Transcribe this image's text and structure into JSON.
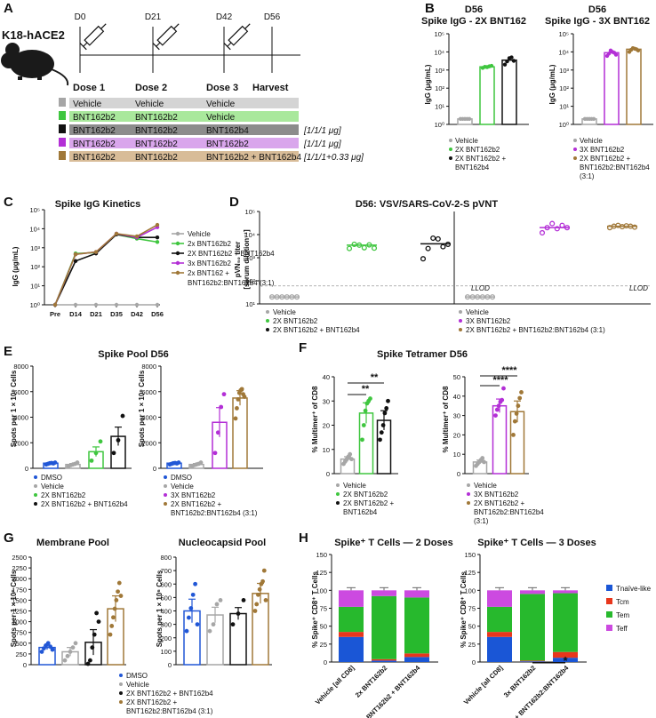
{
  "colors": {
    "vehicle": "#a6a6a6",
    "bnt2x": "#3fc63f",
    "bnt2x_b4": "#111111",
    "bnt3x": "#b32fd6",
    "bnt3x_b4": "#a07838",
    "dmso": "#2157d6",
    "tnaive": "#1a56d6",
    "tcm": "#e8361c",
    "tem": "#27b92d",
    "teff": "#cc4ae0",
    "harvest": "#e8202a",
    "dose_note": "#1f7a46"
  },
  "panel_a": {
    "letter": "A",
    "mouse": "K18-hACE2",
    "days": [
      "D0",
      "D21",
      "D42",
      "D56"
    ],
    "doses": [
      "Dose 1",
      "Dose 2",
      "Dose 3",
      "Harvest"
    ],
    "rows": [
      {
        "cells": [
          "Vehicle",
          "Vehicle",
          "Vehicle"
        ],
        "note": "",
        "color": "#a6a6a6",
        "bg": "#d4d4d4",
        "text": "#ffffff"
      },
      {
        "cells": [
          "BNT162b2",
          "BNT162b2",
          "Vehicle"
        ],
        "note": "",
        "color": "#3fc63f",
        "bg": "#a9e89c",
        "text": "#111111"
      },
      {
        "cells": [
          "BNT162b2",
          "BNT162b2",
          "BNT162b4"
        ],
        "note": "[1/1/1 μg]",
        "color": "#111111",
        "bg": "#8c8c8c",
        "text": "#111111"
      },
      {
        "cells": [
          "BNT162b2",
          "BNT162b2",
          "BNT162b2"
        ],
        "note": "[1/1/1 μg]",
        "color": "#b32fd6",
        "bg": "#d9a6ec",
        "text": "#111111"
      },
      {
        "cells": [
          "BNT162b2",
          "BNT162b2",
          "BNT162b2 + BNT162b4"
        ],
        "note": "[1/1/1+0.33 μg]",
        "color": "#a07838",
        "bg": "#d8bc98",
        "text": "#111111"
      }
    ]
  },
  "panel_b": {
    "letter": "B",
    "left": {
      "title_line1": "D56",
      "title_line2": "Spike IgG - 2X BNT162",
      "ylabel": "IgG (μg/mL)",
      "yticks": [
        "10⁰",
        "10¹",
        "10²",
        "10³",
        "10⁴",
        "10⁵"
      ],
      "legend": [
        "Vehicle",
        "2X BNT162b2",
        "2X BNT162b2 +",
        "BNT162b4"
      ],
      "bars": [
        {
          "group": "Vehicle",
          "value": 2,
          "points": [
            2,
            2,
            2,
            2,
            2
          ]
        },
        {
          "group": "2X BNT162b2",
          "value": 1500,
          "points": [
            1300,
            1500,
            1450,
            1600,
            1700
          ]
        },
        {
          "group": "2X BNT162b2 + BNT162b4",
          "value": 3500,
          "points": [
            2000,
            3000,
            4500,
            5000,
            3200
          ]
        }
      ]
    },
    "right": {
      "title_line1": "D56",
      "title_line2": "Spike IgG - 3X BNT162",
      "ylabel": "IgG (μg/mL)",
      "yticks": [
        "10⁰",
        "10¹",
        "10²",
        "10³",
        "10⁴",
        "10⁵"
      ],
      "legend": [
        "Vehicle",
        "3X BNT162b2",
        "2X BNT162b2 +",
        "BNT162b2:BNT162b4",
        "(3:1)"
      ],
      "bars": [
        {
          "group": "Vehicle",
          "value": 2,
          "points": [
            2,
            2,
            2,
            2,
            2
          ]
        },
        {
          "group": "3X BNT162b2",
          "value": 9000,
          "points": [
            6000,
            8000,
            12000,
            10000,
            9000,
            7000
          ]
        },
        {
          "group": "2X BNT162b2 + BNT162b2:BNT162b4 (3:1)",
          "value": 14000,
          "points": [
            10000,
            13000,
            16000,
            15000,
            14000,
            12000
          ]
        }
      ]
    }
  },
  "panel_c": {
    "letter": "C",
    "title": "Spike IgG Kinetics",
    "ylabel": "IgG (μg/mL)",
    "yticks": [
      "10⁰",
      "10¹",
      "10²",
      "10³",
      "10⁴",
      "10⁵"
    ],
    "x": [
      "Pre",
      "D14",
      "D21",
      "D35",
      "D42",
      "D56"
    ],
    "legend": [
      "Vehicle",
      "2x BNT162b2",
      "2X BNT162b2 + BNT162b4",
      "3x BNT162b2",
      "2x BNT162 +",
      "BNT162b2:BNT162b4 (3:1)"
    ],
    "series": [
      {
        "name": "Vehicle",
        "values": [
          1,
          1,
          1,
          1,
          1,
          1
        ]
      },
      {
        "name": "2x BNT162b2",
        "values": [
          1,
          500,
          550,
          5000,
          3000,
          2000
        ]
      },
      {
        "name": "2X BNT162b2 + BNT162b4",
        "values": [
          1,
          200,
          500,
          5000,
          3500,
          3500
        ]
      },
      {
        "name": "3x BNT162b2",
        "values": [
          1,
          450,
          600,
          5500,
          3500,
          12000
        ]
      },
      {
        "name": "2x BNT162 + BNT162b2:BNT162b4 (3:1)",
        "values": [
          1,
          450,
          600,
          5500,
          4000,
          16000
        ]
      }
    ]
  },
  "panel_d": {
    "letter": "D",
    "title": "D56: VSV/SARS-CoV-2-S pVNT",
    "ylabel_line1": "pVN₅₀ titer",
    "ylabel_line2": "[serum dilution⁻¹]",
    "yticks": [
      "10¹",
      "10²",
      "10³",
      "10⁴",
      "10⁵"
    ],
    "llod": "LLOD",
    "left_legend": [
      "Vehicle",
      "2X BNT162b2",
      "2X BNT162b2 + BNT162b4"
    ],
    "right_legend": [
      "Vehicle",
      "3X BNT162b2",
      "2X BNT162b2 + BNT162b2:BNT162b4 (3:1)"
    ],
    "left": [
      {
        "group": "Vehicle",
        "mean": 20,
        "points": [
          20,
          20,
          20,
          20,
          20,
          20
        ]
      },
      {
        "group": "2X BNT162b2",
        "mean": 3500,
        "points": [
          2500,
          3800,
          3500,
          2700,
          3600,
          2600
        ]
      },
      {
        "group": "2X BNT162b2 + BNT162b4",
        "mean": 4000,
        "points": [
          900,
          2500,
          7000,
          6500,
          3000,
          3800
        ]
      }
    ],
    "right": [
      {
        "group": "Vehicle",
        "mean": 20,
        "points": [
          20,
          20,
          20,
          20,
          20,
          20
        ]
      },
      {
        "group": "3X BNT162b2",
        "mean": 20000,
        "points": [
          12000,
          20000,
          30000,
          18000,
          25000,
          20000
        ]
      },
      {
        "group": "2X BNT162b2 + BNT162b2:BNT162b4 (3:1)",
        "mean": 23000,
        "points": [
          20000,
          23000,
          25000,
          22000,
          24000,
          23000,
          21000
        ]
      }
    ]
  },
  "panel_e": {
    "letter": "E",
    "title": "Spike Pool D56",
    "ylabel": "Spots per 1 × 10⁶ Cells",
    "yticks": [
      "0",
      "2000",
      "4000",
      "6000",
      "8000"
    ],
    "left_legend": [
      "DMSO",
      "Vehicle",
      "2X BNT162b2",
      "2X BNT162b2 + BNT162b4"
    ],
    "right_legend": [
      "DMSO",
      "Vehicle",
      "3X BNT162b2",
      "2X BNT162b2 +",
      "BNT162b2:BNT162b4 (3:1)"
    ],
    "left": [
      {
        "group": "DMSO",
        "mean": 400,
        "points": [
          300,
          350,
          400,
          420,
          380,
          450
        ]
      },
      {
        "group": "Vehicle",
        "mean": 300,
        "points": [
          150,
          250,
          300,
          350,
          450
        ]
      },
      {
        "group": "2X BNT162b2",
        "mean": 1300,
        "points": [
          600,
          1200,
          2100
        ]
      },
      {
        "group": "2X BNT162b2 + BNT162b4",
        "mean": 2500,
        "points": [
          1200,
          2200,
          4100
        ]
      }
    ],
    "right": [
      {
        "group": "DMSO",
        "mean": 400,
        "points": [
          300,
          350,
          400,
          420,
          380,
          450
        ]
      },
      {
        "group": "Vehicle",
        "mean": 300,
        "points": [
          150,
          250,
          300,
          350,
          450
        ]
      },
      {
        "group": "3X BNT162b2",
        "mean": 3600,
        "points": [
          1200,
          2800,
          4800,
          5800
        ]
      },
      {
        "group": "2X BNT162b2 + BNT162b2:BNT162b4 (3:1)",
        "mean": 5500,
        "points": [
          3900,
          4700,
          5400,
          5900,
          6100,
          6200,
          5800,
          5600
        ]
      }
    ]
  },
  "panel_f": {
    "letter": "F",
    "title": "Spike Tetramer D56",
    "ylabel": "% Multimer⁺ of CD8",
    "yticks": [
      "0",
      "10",
      "20",
      "30",
      "40"
    ],
    "left_legend": [
      "Vehicle",
      "2X BNT162b2",
      "2X BNT162b2 +",
      "BNT162b4"
    ],
    "right_legend": [
      "Vehicle",
      "3X BNT162b2",
      "2X BNT162b2 +",
      "BNT162b2:BNT162b4",
      "(3:1)"
    ],
    "left_sig": [
      "**",
      "**"
    ],
    "right_sig": [
      "****",
      "****"
    ],
    "left": [
      {
        "group": "Vehicle",
        "mean": 6,
        "points": [
          4,
          5,
          6,
          7,
          8,
          6
        ]
      },
      {
        "group": "2X BNT162b2",
        "mean": 25,
        "points": [
          14,
          20,
          26,
          29,
          30,
          31
        ]
      },
      {
        "group": "2X BNT162b2 + BNT162b4",
        "mean": 22,
        "points": [
          14,
          17,
          20,
          25,
          27,
          30
        ]
      }
    ],
    "right": [
      {
        "group": "Vehicle",
        "mean": 6,
        "points": [
          4,
          5,
          6,
          7,
          8,
          6
        ]
      },
      {
        "group": "3X BNT162b2",
        "mean": 35,
        "points": [
          30,
          33,
          35,
          37,
          38,
          44
        ]
      },
      {
        "group": "2X BNT162b2 + BNT162b2:BNT162b4 (3:1)",
        "mean": 32,
        "points": [
          20,
          27,
          31,
          35,
          39,
          42
        ]
      }
    ]
  },
  "panel_g": {
    "letter": "G",
    "ylabel": "Spots per 1 × 10⁶ Cells",
    "legend": [
      "DMSO",
      "Vehicle",
      "2X BNT162b2 + BNT162b4",
      "2X BNT162b2 +",
      "BNT162b2:BNT162b4 (3:1)"
    ],
    "membrane": {
      "title": "Membrane Pool",
      "yticks": [
        "0",
        "250",
        "500",
        "750",
        "1000",
        "1250",
        "1500",
        "1750",
        "2000",
        "2250",
        "2500"
      ],
      "bars": [
        {
          "group": "DMSO",
          "mean": 400,
          "points": [
            300,
            380,
            450,
            500,
            420,
            350
          ]
        },
        {
          "group": "Vehicle",
          "mean": 300,
          "points": [
            100,
            200,
            300,
            400,
            500
          ]
        },
        {
          "group": "2X BNT162b2 + BNT162b4",
          "mean": 520,
          "points": [
            20,
            100,
            400,
            700,
            1200,
            1000
          ]
        },
        {
          "group": "2X BNT162b2 + BNT162b2:BNT162b4 (3:1)",
          "mean": 1300,
          "points": [
            700,
            900,
            1100,
            1300,
            1500,
            1700,
            1900,
            1600
          ]
        }
      ]
    },
    "nucleocapsid": {
      "title": "Nucleocapsid Pool",
      "yticks": [
        "0",
        "100",
        "200",
        "300",
        "400",
        "500",
        "600",
        "700",
        "800"
      ],
      "bars": [
        {
          "group": "DMSO",
          "mean": 400,
          "points": [
            250,
            350,
            420,
            520,
            600,
            300
          ]
        },
        {
          "group": "Vehicle",
          "mean": 370,
          "points": [
            250,
            300,
            450,
            480
          ]
        },
        {
          "group": "2X BNT162b2 + BNT162b4",
          "mean": 380,
          "points": [
            300,
            380,
            480
          ]
        },
        {
          "group": "2X BNT162b2 + BNT162b2:BNT162b4 (3:1)",
          "mean": 530,
          "points": [
            400,
            450,
            520,
            560,
            600,
            620,
            700,
            480
          ]
        }
      ]
    }
  },
  "panel_h": {
    "letter": "H",
    "ylabel": "% Spike⁺ CD8⁺ T Cells",
    "yticks": [
      "0",
      "25",
      "50",
      "75",
      "100",
      "125",
      "150"
    ],
    "legend": [
      "Tnaïve-like",
      "Tcm",
      "Tem",
      "Teff"
    ],
    "sig": "*",
    "left": {
      "title": "Spike⁺ T Cells — 2 Doses",
      "categories": [
        "Vehicle [all CD8]",
        "2x BNT162b2",
        "2x BNT162b2 + BNT162b4"
      ],
      "stacks": [
        {
          "Tnaive": 35,
          "Tcm": 7,
          "Tem": 35,
          "Teff": 23
        },
        {
          "Tnaive": 2,
          "Tcm": 2,
          "Tem": 88,
          "Teff": 8
        },
        {
          "Tnaive": 7,
          "Tcm": 5,
          "Tem": 78,
          "Teff": 10
        }
      ]
    },
    "right": {
      "title": "Spike⁺ T Cells — 3 Doses",
      "categories": [
        "Vehicle [all CD8]",
        "3x BNT162b2",
        "2x BNT162b2 + BNT162b2:BNT162b4"
      ],
      "stacks": [
        {
          "Tnaive": 35,
          "Tcm": 7,
          "Tem": 35,
          "Teff": 23
        },
        {
          "Tnaive": 1,
          "Tcm": 1,
          "Tem": 93,
          "Teff": 5
        },
        {
          "Tnaive": 6,
          "Tcm": 8,
          "Tem": 82,
          "Teff": 4
        }
      ]
    }
  },
  "chart_data": [
    {
      "type": "bar",
      "title": "D56 Spike IgG - 2X BNT162",
      "scale": "log",
      "ylabel": "IgG (μg/mL)",
      "ylim": [
        1,
        100000
      ],
      "categories": [
        "Vehicle",
        "2X BNT162b2",
        "2X BNT162b2 + BNT162b4"
      ],
      "values": [
        2,
        1500,
        3500
      ]
    },
    {
      "type": "bar",
      "title": "D56 Spike IgG - 3X BNT162",
      "scale": "log",
      "ylabel": "IgG (μg/mL)",
      "ylim": [
        1,
        100000
      ],
      "categories": [
        "Vehicle",
        "3X BNT162b2",
        "2X BNT162b2 + BNT162b2:BNT162b4 (3:1)"
      ],
      "values": [
        2,
        9000,
        14000
      ]
    },
    {
      "type": "line",
      "title": "Spike IgG Kinetics",
      "scale": "log",
      "ylabel": "IgG (μg/mL)",
      "x": [
        "Pre",
        "D14",
        "D21",
        "D35",
        "D42",
        "D56"
      ],
      "ylim": [
        1,
        100000
      ]
    },
    {
      "type": "scatter",
      "title": "D56: VSV/SARS-CoV-2-S pVNT",
      "scale": "log",
      "ylim": [
        10,
        100000
      ]
    },
    {
      "type": "bar",
      "title": "Spike Pool D56",
      "ylim": [
        0,
        8000
      ]
    },
    {
      "type": "bar",
      "title": "Spike Tetramer D56",
      "ylim": [
        0,
        40
      ]
    },
    {
      "type": "bar",
      "title": "Membrane Pool",
      "ylim": [
        0,
        2500
      ]
    },
    {
      "type": "bar",
      "title": "Nucleocapsid Pool",
      "ylim": [
        0,
        800
      ]
    },
    {
      "type": "bar",
      "title": "Spike⁺ T Cells",
      "stacked": true,
      "ylim": [
        0,
        150
      ]
    }
  ]
}
